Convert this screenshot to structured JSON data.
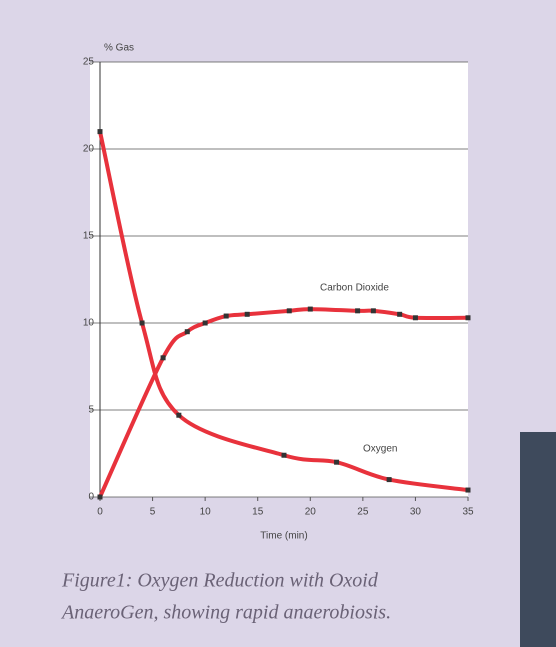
{
  "chart_data": {
    "type": "line",
    "ylabel": "% Gas",
    "xlabel": "Time (min)",
    "caption": [
      "Figure1: Oxygen Reduction with Oxoid",
      "AnaeroGen, showing rapid anaerobiosis."
    ],
    "xlim": [
      0,
      35
    ],
    "ylim": [
      0,
      25
    ],
    "xticks": [
      0,
      5,
      10,
      15,
      20,
      25,
      30,
      35
    ],
    "yticks": [
      0,
      5,
      10,
      15,
      20,
      25
    ],
    "grid": true,
    "series": [
      {
        "name": "Carbon Dioxide",
        "color": "#e8323c",
        "x": [
          0,
          6,
          8.3,
          10,
          12,
          14,
          18,
          20,
          24.5,
          26,
          28.5,
          30,
          35
        ],
        "values": [
          0,
          8,
          9.5,
          10,
          10.4,
          10.5,
          10.7,
          10.8,
          10.7,
          10.7,
          10.5,
          10.3,
          10.3
        ]
      },
      {
        "name": "Oxygen",
        "color": "#e8323c",
        "x": [
          0,
          4,
          7.5,
          17.5,
          22.5,
          27.5,
          35
        ],
        "values": [
          21,
          10,
          4.7,
          2.4,
          2.0,
          1.0,
          0.4
        ]
      }
    ]
  }
}
